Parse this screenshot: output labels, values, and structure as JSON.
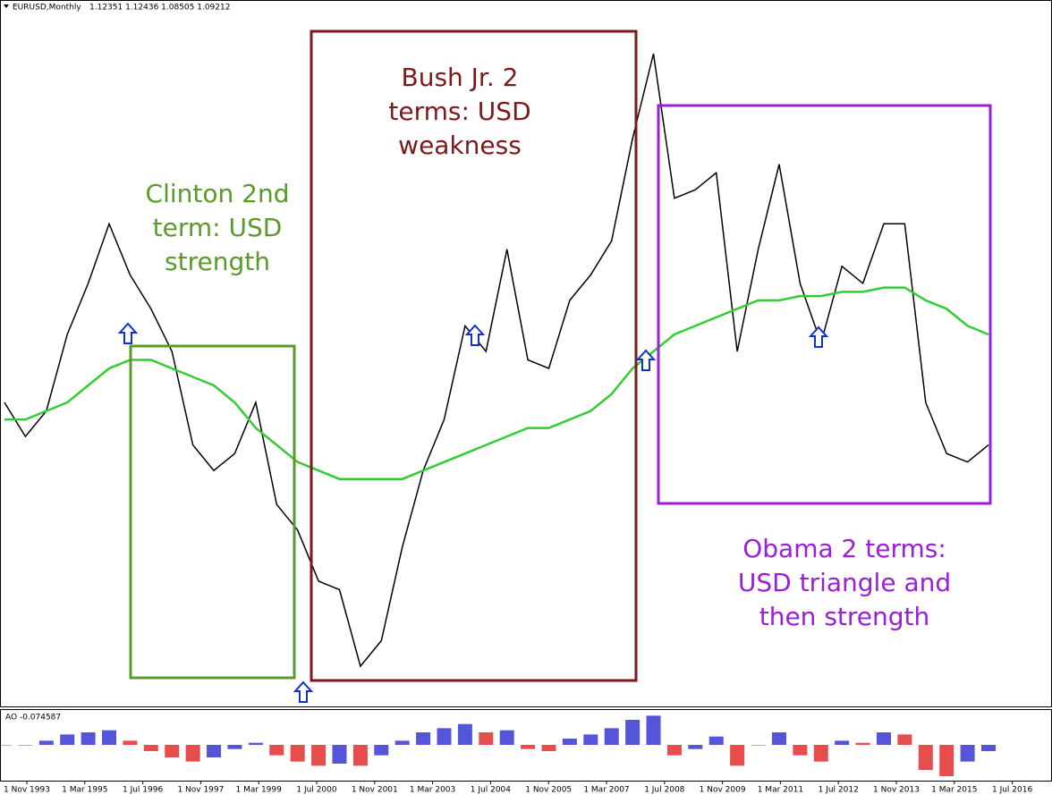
{
  "chart_data": {
    "type": "line",
    "title": "EURUSD,Monthly",
    "ohlc_label": "1.12351 1.12436 1.08505 1.09212",
    "indicator_label": "AO -0.074587",
    "xtick_labels": [
      "1 Nov 1993",
      "1 Mar 1995",
      "1 Jul 1996",
      "1 Nov 1997",
      "1 Mar 1999",
      "1 Jul 2000",
      "1 Nov 2001",
      "1 Mar 2003",
      "1 Jul 2004",
      "1 Nov 2005",
      "1 Mar 2007",
      "1 Jul 2008",
      "1 Nov 2009",
      "1 Mar 2011",
      "1 Jul 2012",
      "1 Nov 2013",
      "1 Mar 2015",
      "1 Jul 2016"
    ],
    "series": [
      {
        "color": "#000000",
        "values": [
          1.16,
          1.12,
          1.15,
          1.24,
          1.3,
          1.37,
          1.31,
          1.27,
          1.22,
          1.11,
          1.08,
          1.1,
          1.16,
          1.04,
          1.01,
          0.95,
          0.94,
          0.85,
          0.88,
          0.99,
          1.08,
          1.14,
          1.25,
          1.22,
          1.34,
          1.21,
          1.2,
          1.28,
          1.31,
          1.35,
          1.47,
          1.57,
          1.4,
          1.41,
          1.43,
          1.22,
          1.34,
          1.44,
          1.3,
          1.23,
          1.32,
          1.3,
          1.37,
          1.37,
          1.16,
          1.1,
          1.09,
          1.11
        ]
      },
      {
        "color": "#33cc33",
        "values": [
          1.14,
          1.14,
          1.15,
          1.16,
          1.18,
          1.2,
          1.21,
          1.21,
          1.2,
          1.19,
          1.18,
          1.16,
          1.13,
          1.11,
          1.09,
          1.08,
          1.07,
          1.07,
          1.07,
          1.07,
          1.08,
          1.09,
          1.1,
          1.11,
          1.12,
          1.13,
          1.13,
          1.14,
          1.15,
          1.17,
          1.2,
          1.22,
          1.24,
          1.25,
          1.26,
          1.27,
          1.28,
          1.28,
          1.285,
          1.285,
          1.29,
          1.29,
          1.295,
          1.295,
          1.28,
          1.27,
          1.25,
          1.24
        ]
      }
    ],
    "ao_values": [
      0,
      0,
      0.02,
      0.05,
      0.06,
      0.07,
      0.02,
      -0.03,
      -0.06,
      -0.08,
      -0.06,
      -0.02,
      0.01,
      -0.05,
      -0.08,
      -0.1,
      -0.09,
      -0.1,
      -0.05,
      0.02,
      0.06,
      0.08,
      0.1,
      0.06,
      0.07,
      -0.02,
      -0.03,
      0.03,
      0.05,
      0.08,
      0.12,
      0.14,
      -0.05,
      -0.02,
      0.04,
      -0.1,
      0.0,
      0.06,
      -0.05,
      -0.08,
      0.02,
      0.01,
      0.06,
      0.05,
      -0.12,
      -0.15,
      -0.08,
      -0.03
    ],
    "annotations": [
      {
        "lines": [
          "Clinton 2nd",
          "term: USD",
          "strength"
        ]
      },
      {
        "lines": [
          "Bush Jr. 2",
          "terms: USD",
          "weakness"
        ]
      },
      {
        "lines": [
          "Obama 2 terms:",
          "USD triangle and",
          "then strength"
        ]
      }
    ]
  }
}
